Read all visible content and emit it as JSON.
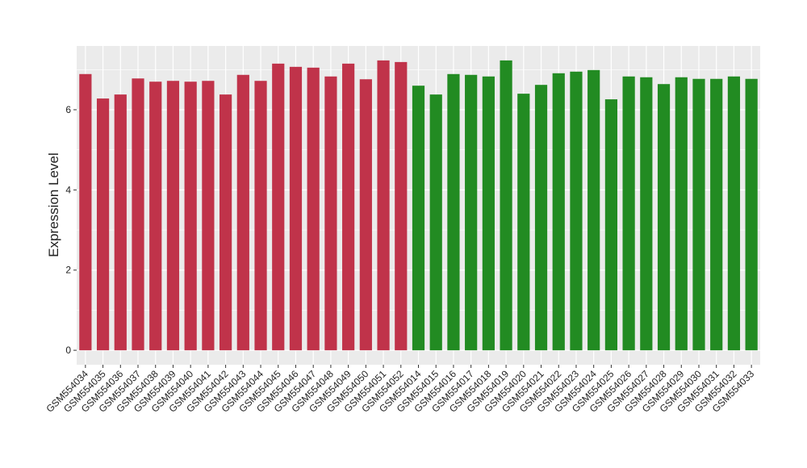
{
  "chart_data": {
    "type": "bar",
    "y_label": "Expression Level",
    "categories": [
      "GSM554034",
      "GSM554035",
      "GSM554036",
      "GSM554037",
      "GSM554038",
      "GSM554039",
      "GSM554040",
      "GSM554041",
      "GSM554042",
      "GSM554043",
      "GSM554044",
      "GSM554045",
      "GSM554046",
      "GSM554047",
      "GSM554048",
      "GSM554049",
      "GSM554050",
      "GSM554051",
      "GSM554052",
      "GSM554014",
      "GSM554015",
      "GSM554016",
      "GSM554017",
      "GSM554018",
      "GSM554019",
      "GSM554020",
      "GSM554021",
      "GSM554022",
      "GSM554023",
      "GSM554024",
      "GSM554025",
      "GSM554026",
      "GSM554027",
      "GSM554028",
      "GSM554029",
      "GSM554030",
      "GSM554031",
      "GSM554032",
      "GSM554033"
    ],
    "values": [
      6.89,
      6.28,
      6.38,
      6.78,
      6.7,
      6.72,
      6.7,
      6.72,
      6.38,
      6.87,
      6.72,
      7.15,
      7.07,
      7.05,
      6.83,
      7.15,
      6.76,
      7.23,
      7.19,
      6.6,
      6.38,
      6.89,
      6.87,
      6.83,
      7.23,
      6.4,
      6.62,
      6.91,
      6.95,
      6.99,
      6.26,
      6.83,
      6.81,
      6.64,
      6.81,
      6.77,
      6.77,
      6.83,
      6.77
    ],
    "colors": [
      "#c0334a",
      "#c0334a",
      "#c0334a",
      "#c0334a",
      "#c0334a",
      "#c0334a",
      "#c0334a",
      "#c0334a",
      "#c0334a",
      "#c0334a",
      "#c0334a",
      "#c0334a",
      "#c0334a",
      "#c0334a",
      "#c0334a",
      "#c0334a",
      "#c0334a",
      "#c0334a",
      "#c0334a",
      "#228b22",
      "#228b22",
      "#228b22",
      "#228b22",
      "#228b22",
      "#228b22",
      "#228b22",
      "#228b22",
      "#228b22",
      "#228b22",
      "#228b22",
      "#228b22",
      "#228b22",
      "#228b22",
      "#228b22",
      "#228b22",
      "#228b22",
      "#228b22",
      "#228b22",
      "#228b22"
    ],
    "ylim": [
      -0.36,
      7.59
    ],
    "yticks": [
      0,
      2,
      4,
      6
    ],
    "grid": true
  }
}
